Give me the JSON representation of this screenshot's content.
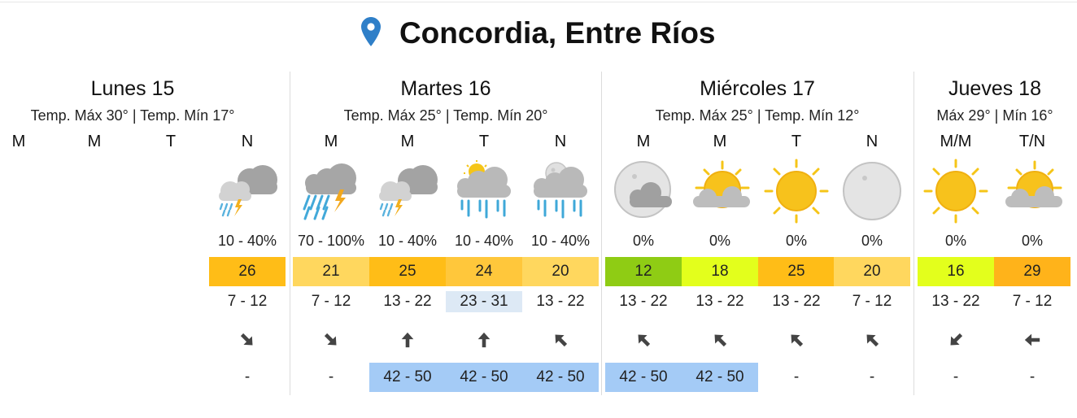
{
  "location": {
    "title": "Concordia, Entre Ríos"
  },
  "days": [
    {
      "name": "Lunes 15",
      "temps": "Temp. Máx 30° | Temp. Mín 17°"
    },
    {
      "name": "Martes 16",
      "temps": "Temp. Máx 25° | Temp. Mín 20°"
    },
    {
      "name": "Miércoles 17",
      "temps": "Temp. Máx 25° | Temp. Mín 12°"
    },
    {
      "name": "Jueves 18",
      "temps": "Máx 29° | Mín 16°"
    }
  ],
  "slots": [
    {
      "period": "M"
    },
    {
      "period": "M"
    },
    {
      "period": "T"
    },
    {
      "period": "N",
      "icon": "storm-rain-icon",
      "rain": "10 - 40%",
      "temp": "26",
      "wind": "7 - 12",
      "direction": "arrow-down-right-icon",
      "gust": "-"
    },
    {
      "period": "M",
      "icon": "heavy-rain-storm-icon",
      "rain": "70 - 100%",
      "temp": "21",
      "wind": "7 - 12",
      "direction": "arrow-down-right-icon",
      "gust": "-"
    },
    {
      "period": "M",
      "icon": "storm-rain-icon",
      "rain": "10 - 40%",
      "temp": "25",
      "wind": "13 - 22",
      "direction": "arrow-up-icon",
      "gust": "42 - 50"
    },
    {
      "period": "T",
      "icon": "sun-cloud-rain-icon",
      "rain": "10 - 40%",
      "temp": "24",
      "wind": "23 - 31",
      "direction": "arrow-up-icon",
      "gust": "42 - 50"
    },
    {
      "period": "N",
      "icon": "moon-cloud-rain-icon",
      "rain": "10 - 40%",
      "temp": "20",
      "wind": "13 - 22",
      "direction": "arrow-up-left-icon",
      "gust": "42 - 50"
    },
    {
      "period": "M",
      "icon": "moon-cloud-icon",
      "rain": "0%",
      "temp": "12",
      "wind": "13 - 22",
      "direction": "arrow-up-left-icon",
      "gust": "42 - 50"
    },
    {
      "period": "M",
      "icon": "partly-cloudy-icon",
      "rain": "0%",
      "temp": "18",
      "wind": "13 - 22",
      "direction": "arrow-up-left-icon",
      "gust": "42 - 50"
    },
    {
      "period": "T",
      "icon": "sun-icon",
      "rain": "0%",
      "temp": "25",
      "wind": "13 - 22",
      "direction": "arrow-up-left-icon",
      "gust": "-"
    },
    {
      "period": "N",
      "icon": "moon-icon",
      "rain": "0%",
      "temp": "20",
      "wind": "7 - 12",
      "direction": "arrow-up-left-icon",
      "gust": "-"
    },
    {
      "period": "M/M",
      "icon": "sun-icon",
      "rain": "0%",
      "temp": "16",
      "wind": "13 - 22",
      "direction": "arrow-down-left-icon",
      "gust": "-"
    },
    {
      "period": "T/N",
      "icon": "partly-cloudy-icon",
      "rain": "0%",
      "temp": "29",
      "wind": "7 - 12",
      "direction": "arrow-left-icon",
      "gust": "-"
    }
  ]
}
